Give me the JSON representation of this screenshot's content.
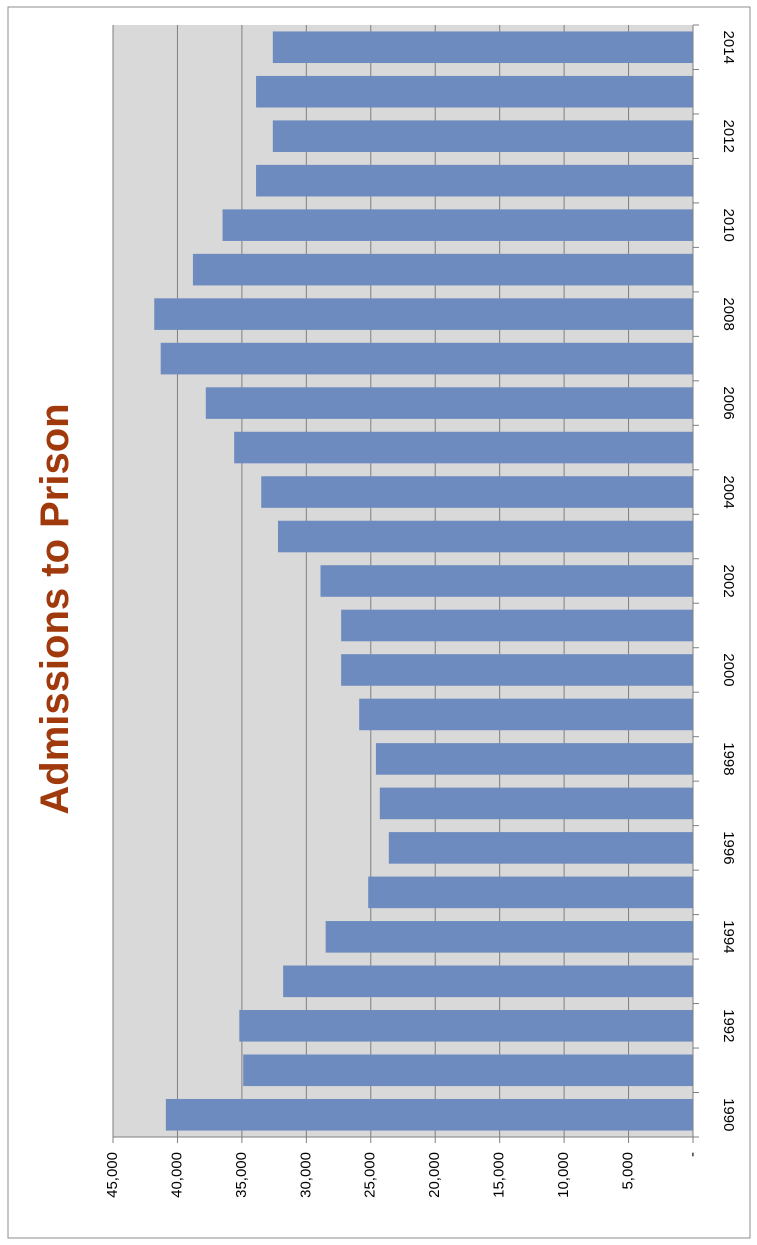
{
  "chart_data": {
    "type": "bar",
    "orientation": "rotated-90-clockwise",
    "title": "Admissions to Prison",
    "xlabel": "",
    "ylabel": "",
    "categories": [
      "1990",
      "1991",
      "1992",
      "1993",
      "1994",
      "1995",
      "1996",
      "1997",
      "1998",
      "1999",
      "2000",
      "2001",
      "2002",
      "2003",
      "2004",
      "2005",
      "2006",
      "2007",
      "2008",
      "2009",
      "2010",
      "2011",
      "2012",
      "2013",
      "2014"
    ],
    "category_tick_labels": [
      "1990",
      "1992",
      "1994",
      "1996",
      "1998",
      "2000",
      "2002",
      "2004",
      "2006",
      "2008",
      "2010",
      "2012",
      "2014"
    ],
    "values": [
      40900,
      34900,
      35200,
      31800,
      28500,
      25200,
      23600,
      24300,
      24600,
      25900,
      27300,
      27300,
      28900,
      32200,
      33500,
      35600,
      37800,
      41300,
      41800,
      38800,
      36500,
      33900,
      32600,
      33900,
      32600
    ],
    "value_tick_labels": [
      "-",
      "5,000",
      "10,000",
      "15,000",
      "20,000",
      "25,000",
      "30,000",
      "35,000",
      "40,000",
      "45,000"
    ],
    "ylim": [
      0,
      45000
    ],
    "grid": true,
    "legend": "none",
    "colors": {
      "bar": "#6e8bbf",
      "plot_background": "#d9d9d9",
      "gridline": "#7f7f7f",
      "title": "#a0390b",
      "border": "#8c8c8c"
    }
  }
}
